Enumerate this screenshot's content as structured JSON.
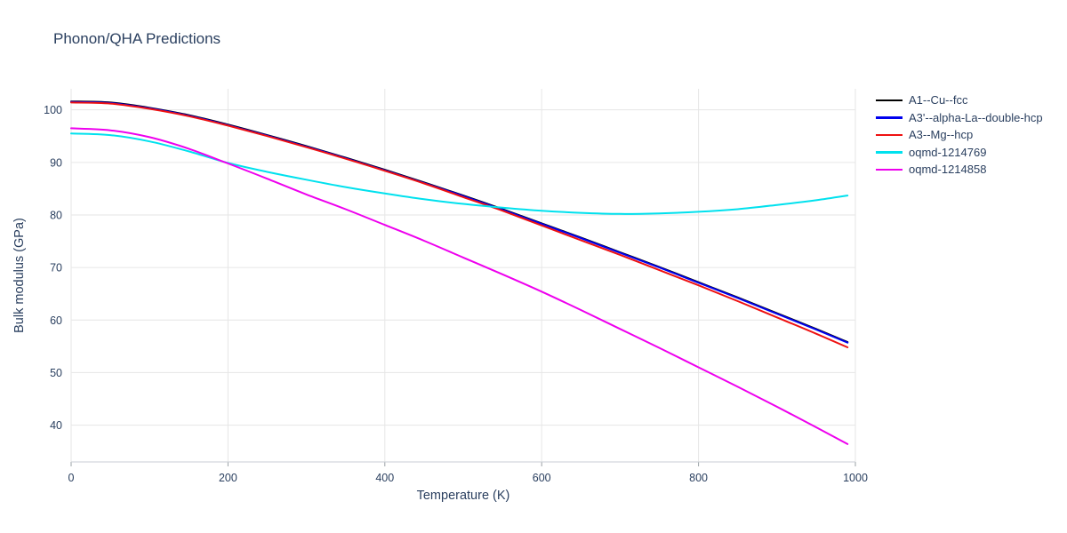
{
  "title": "Phonon/QHA Predictions",
  "chart_data": {
    "type": "line",
    "title": "Phonon/QHA Predictions",
    "xlabel": "Temperature (K)",
    "ylabel": "Bulk modulus (GPa)",
    "xlim": [
      0,
      1000
    ],
    "ylim": [
      33,
      104
    ],
    "xticks": [
      0,
      200,
      400,
      600,
      800,
      1000
    ],
    "yticks": [
      40,
      50,
      60,
      70,
      80,
      90,
      100
    ],
    "grid": true,
    "grid_color": "#e6e6e6",
    "axis_line_color": "#c9ced4",
    "tick_mark_color": "#9aa0a6",
    "legend_position": "top-right-outside",
    "x": [
      0,
      50,
      100,
      150,
      200,
      250,
      300,
      350,
      400,
      450,
      500,
      550,
      600,
      650,
      700,
      750,
      800,
      850,
      900,
      950,
      990
    ],
    "series": [
      {
        "name": "A1--Cu--fcc",
        "color": "#000000",
        "y": [
          101.6,
          101.4,
          100.4,
          99.0,
          97.2,
          95.2,
          93.1,
          90.9,
          88.6,
          86.2,
          83.7,
          81.1,
          78.4,
          75.7,
          72.9,
          70.1,
          67.2,
          64.3,
          61.3,
          58.3,
          55.8
        ]
      },
      {
        "name": "A3'--alpha-La--double-hcp",
        "color": "#0000ee",
        "y": [
          101.5,
          101.3,
          100.3,
          98.9,
          97.1,
          95.1,
          93.0,
          90.8,
          88.5,
          86.1,
          83.6,
          81.0,
          78.3,
          75.6,
          72.8,
          70.0,
          67.1,
          64.2,
          61.2,
          58.2,
          55.7
        ]
      },
      {
        "name": "A3--Mg--hcp",
        "color": "#ee1111",
        "y": [
          101.4,
          101.2,
          100.2,
          98.8,
          97.0,
          95.0,
          92.9,
          90.7,
          88.4,
          86.0,
          83.4,
          80.8,
          78.0,
          75.2,
          72.4,
          69.5,
          66.6,
          63.6,
          60.5,
          57.4,
          54.8
        ]
      },
      {
        "name": "oqmd-1214769",
        "color": "#00e1ee",
        "y": [
          95.5,
          95.2,
          94.0,
          92.1,
          89.9,
          88.2,
          86.7,
          85.3,
          84.1,
          83.0,
          82.1,
          81.4,
          80.8,
          80.4,
          80.2,
          80.3,
          80.6,
          81.1,
          81.9,
          82.8,
          83.7
        ]
      },
      {
        "name": "oqmd-1214858",
        "color": "#ee00ee",
        "y": [
          96.5,
          96.1,
          94.8,
          92.6,
          89.8,
          86.9,
          83.9,
          81.1,
          78.1,
          75.1,
          71.9,
          68.7,
          65.4,
          61.9,
          58.3,
          54.7,
          51.0,
          47.3,
          43.5,
          39.6,
          36.4
        ]
      }
    ]
  }
}
